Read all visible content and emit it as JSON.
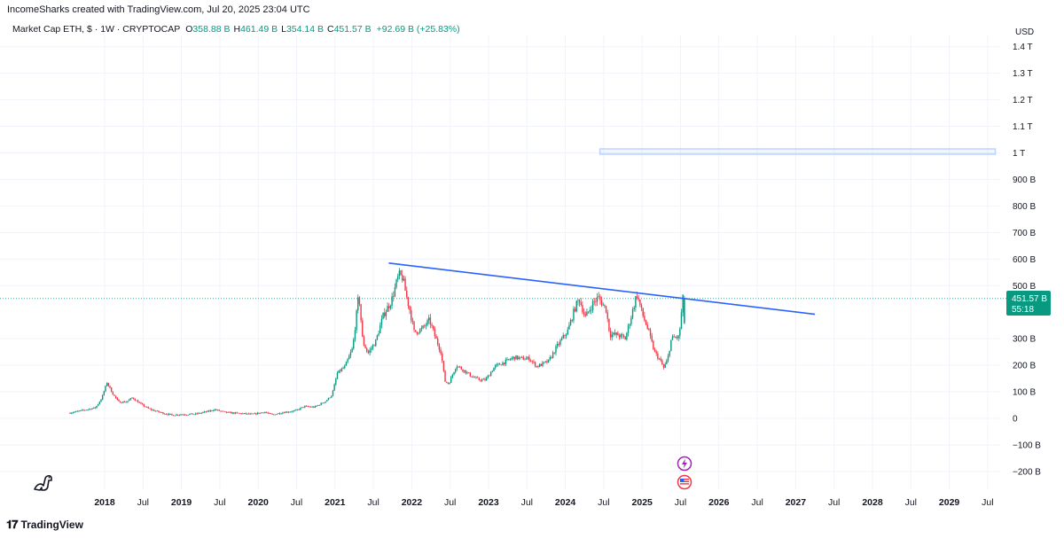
{
  "header": {
    "attribution": "IncomeSharks created with TradingView.com, Jul 20, 2025 23:04 UTC"
  },
  "legend": {
    "symbol": "Market Cap ETH, $ · 1W · CRYPTOCAP",
    "open_label": "O",
    "open": "358.88 B",
    "high_label": "H",
    "high": "461.49 B",
    "low_label": "L",
    "low": "354.14 B",
    "close_label": "C",
    "close": "451.57 B",
    "change": "+92.69 B (+25.83%)"
  },
  "price_scale": {
    "currency": "USD",
    "current_price": "451.57 B",
    "countdown": "55:18"
  },
  "branding": {
    "name": "TradingView"
  },
  "icons": [
    "dinosaur-icon",
    "lightning-event-icon",
    "us-flag-event-icon",
    "tradingview-logo-icon"
  ],
  "colors": {
    "up": "#089981",
    "down": "#f23645",
    "trendline": "#2962ff",
    "zone": "#bcd2ff",
    "grid": "#f0f3fa"
  },
  "chart_data": {
    "type": "candlestick",
    "title": "Market Cap ETH, $ · 1W · CRYPTOCAP",
    "interval": "1W",
    "unit": "USD (billions)",
    "ylim": [
      -200,
      1450
    ],
    "y_ticks": [
      {
        "value": 1400,
        "label": "1.4 T"
      },
      {
        "value": 1300,
        "label": "1.3 T"
      },
      {
        "value": 1200,
        "label": "1.2 T"
      },
      {
        "value": 1100,
        "label": "1.1 T"
      },
      {
        "value": 1000,
        "label": "1 T"
      },
      {
        "value": 900,
        "label": "900 B"
      },
      {
        "value": 800,
        "label": "800 B"
      },
      {
        "value": 700,
        "label": "700 B"
      },
      {
        "value": 600,
        "label": "600 B"
      },
      {
        "value": 500,
        "label": "500 B"
      },
      {
        "value": 300,
        "label": "300 B"
      },
      {
        "value": 200,
        "label": "200 B"
      },
      {
        "value": 100,
        "label": "100 B"
      },
      {
        "value": 0,
        "label": "0"
      },
      {
        "value": -100,
        "label": "−100 B"
      },
      {
        "value": -200,
        "label": "−200 B"
      }
    ],
    "x_ticks": [
      {
        "t": 2018.0,
        "label": "2018",
        "bold": true
      },
      {
        "t": 2018.5,
        "label": "Jul",
        "bold": false
      },
      {
        "t": 2019.0,
        "label": "2019",
        "bold": true
      },
      {
        "t": 2019.5,
        "label": "Jul",
        "bold": false
      },
      {
        "t": 2020.0,
        "label": "2020",
        "bold": true
      },
      {
        "t": 2020.5,
        "label": "Jul",
        "bold": false
      },
      {
        "t": 2021.0,
        "label": "2021",
        "bold": true
      },
      {
        "t": 2021.5,
        "label": "Jul",
        "bold": false
      },
      {
        "t": 2022.0,
        "label": "2022",
        "bold": true
      },
      {
        "t": 2022.5,
        "label": "Jul",
        "bold": false
      },
      {
        "t": 2023.0,
        "label": "2023",
        "bold": true
      },
      {
        "t": 2023.5,
        "label": "Jul",
        "bold": false
      },
      {
        "t": 2024.0,
        "label": "2024",
        "bold": true
      },
      {
        "t": 2024.5,
        "label": "Jul",
        "bold": false
      },
      {
        "t": 2025.0,
        "label": "2025",
        "bold": true
      },
      {
        "t": 2025.5,
        "label": "Jul",
        "bold": false
      },
      {
        "t": 2026.0,
        "label": "2026",
        "bold": true
      },
      {
        "t": 2026.5,
        "label": "Jul",
        "bold": false
      },
      {
        "t": 2027.0,
        "label": "2027",
        "bold": true
      },
      {
        "t": 2027.5,
        "label": "Jul",
        "bold": false
      },
      {
        "t": 2028.0,
        "label": "2028",
        "bold": true
      },
      {
        "t": 2028.5,
        "label": "Jul",
        "bold": false
      },
      {
        "t": 2029.0,
        "label": "2029",
        "bold": true
      },
      {
        "t": 2029.5,
        "label": "Jul",
        "bold": false
      }
    ],
    "price_path": [
      [
        2017.55,
        20
      ],
      [
        2017.7,
        28
      ],
      [
        2017.9,
        40
      ],
      [
        2017.98,
        75
      ],
      [
        2018.05,
        135
      ],
      [
        2018.12,
        95
      ],
      [
        2018.2,
        62
      ],
      [
        2018.3,
        62
      ],
      [
        2018.38,
        78
      ],
      [
        2018.5,
        52
      ],
      [
        2018.6,
        35
      ],
      [
        2018.75,
        22
      ],
      [
        2018.9,
        12
      ],
      [
        2019.0,
        15
      ],
      [
        2019.2,
        16
      ],
      [
        2019.35,
        25
      ],
      [
        2019.45,
        33
      ],
      [
        2019.6,
        22
      ],
      [
        2019.8,
        18
      ],
      [
        2019.95,
        15
      ],
      [
        2020.1,
        24
      ],
      [
        2020.2,
        13
      ],
      [
        2020.35,
        23
      ],
      [
        2020.5,
        28
      ],
      [
        2020.62,
        45
      ],
      [
        2020.75,
        42
      ],
      [
        2020.9,
        65
      ],
      [
        2020.98,
        88
      ],
      [
        2021.05,
        170
      ],
      [
        2021.15,
        195
      ],
      [
        2021.25,
        265
      ],
      [
        2021.33,
        470
      ],
      [
        2021.38,
        290
      ],
      [
        2021.45,
        245
      ],
      [
        2021.55,
        290
      ],
      [
        2021.65,
        390
      ],
      [
        2021.75,
        440
      ],
      [
        2021.85,
        540
      ],
      [
        2021.9,
        530
      ],
      [
        2021.95,
        460
      ],
      [
        2022.0,
        400
      ],
      [
        2022.05,
        325
      ],
      [
        2022.15,
        335
      ],
      [
        2022.25,
        370
      ],
      [
        2022.32,
        310
      ],
      [
        2022.4,
        250
      ],
      [
        2022.45,
        140
      ],
      [
        2022.5,
        130
      ],
      [
        2022.6,
        200
      ],
      [
        2022.7,
        180
      ],
      [
        2022.8,
        158
      ],
      [
        2022.9,
        145
      ],
      [
        2022.98,
        145
      ],
      [
        2023.1,
        195
      ],
      [
        2023.25,
        215
      ],
      [
        2023.35,
        230
      ],
      [
        2023.45,
        225
      ],
      [
        2023.55,
        225
      ],
      [
        2023.65,
        195
      ],
      [
        2023.8,
        215
      ],
      [
        2023.92,
        275
      ],
      [
        2024.05,
        330
      ],
      [
        2024.15,
        420
      ],
      [
        2024.2,
        450
      ],
      [
        2024.28,
        380
      ],
      [
        2024.38,
        435
      ],
      [
        2024.45,
        455
      ],
      [
        2024.55,
        410
      ],
      [
        2024.6,
        315
      ],
      [
        2024.7,
        315
      ],
      [
        2024.8,
        300
      ],
      [
        2024.9,
        410
      ],
      [
        2024.95,
        470
      ],
      [
        2025.02,
        395
      ],
      [
        2025.1,
        330
      ],
      [
        2025.18,
        250
      ],
      [
        2025.25,
        220
      ],
      [
        2025.3,
        190
      ],
      [
        2025.35,
        220
      ],
      [
        2025.4,
        300
      ],
      [
        2025.45,
        305
      ],
      [
        2025.5,
        305
      ],
      [
        2025.55,
        451
      ]
    ],
    "last": {
      "t": 2025.55,
      "open": 358.88,
      "high": 461.49,
      "low": 354.14,
      "close": 451.57,
      "change": 92.69,
      "change_pct": 25.83
    },
    "trendline": {
      "from": {
        "t": 2021.7,
        "v": 585
      },
      "to": {
        "t": 2027.25,
        "v": 392
      }
    },
    "zone": {
      "from_t": 2024.45,
      "to_t": 2029.6,
      "low": 995,
      "high": 1015
    }
  }
}
